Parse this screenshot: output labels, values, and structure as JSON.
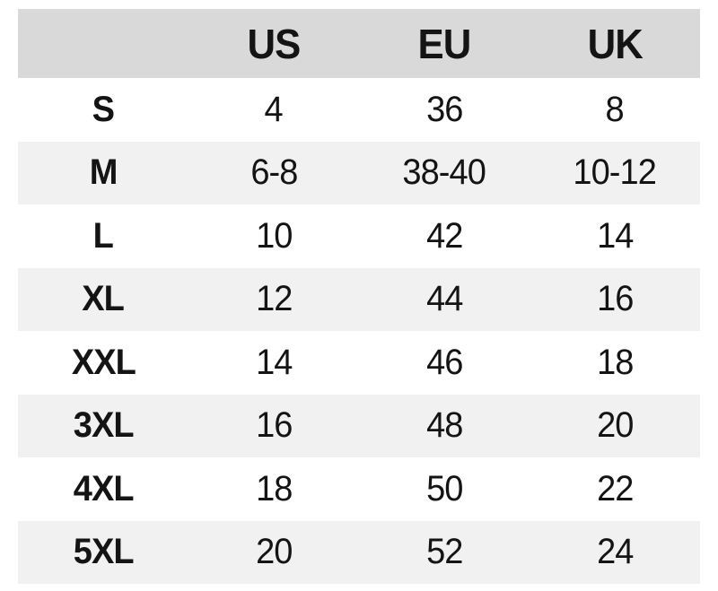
{
  "chart_data": {
    "type": "table",
    "title": "",
    "columns": [
      "",
      "US",
      "EU",
      "UK"
    ],
    "rows": [
      [
        "S",
        "4",
        "36",
        "8"
      ],
      [
        "M",
        "6-8",
        "38-40",
        "10-12"
      ],
      [
        "L",
        "10",
        "42",
        "14"
      ],
      [
        "XL",
        "12",
        "44",
        "16"
      ],
      [
        "XXL",
        "14",
        "46",
        "18"
      ],
      [
        "3XL",
        "16",
        "48",
        "20"
      ],
      [
        "4XL",
        "18",
        "50",
        "22"
      ],
      [
        "5XL",
        "20",
        "52",
        "24"
      ]
    ]
  },
  "colors": {
    "header_bg": "#d9d9d9",
    "stripe_bg": "#f1f1f1",
    "text": "#141414",
    "page_bg": "#ffffff"
  }
}
